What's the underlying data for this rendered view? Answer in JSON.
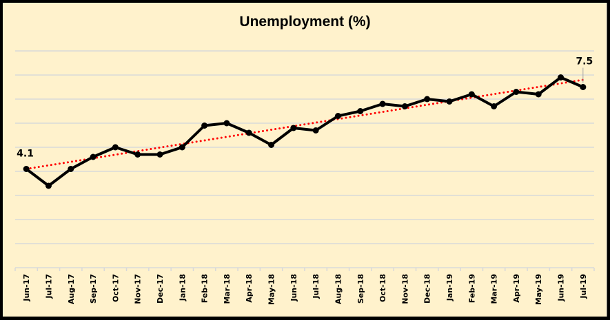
{
  "chart_data": {
    "type": "line",
    "title": "Unemployment (%)",
    "xlabel": "",
    "ylabel": "",
    "ylim": [
      0,
      9
    ],
    "y_gridlines": [
      1,
      2,
      3,
      4,
      5,
      6,
      7,
      8,
      9
    ],
    "y_tick_labels_visible": false,
    "grid": true,
    "legend": null,
    "categories": [
      "Jun-17",
      "Jul-17",
      "Aug-17",
      "Sep-17",
      "Oct-17",
      "Nov-17",
      "Dec-17",
      "Jan-18",
      "Feb-18",
      "Mar-18",
      "Apr-18",
      "May-18",
      "Jun-18",
      "Jul-18",
      "Aug-18",
      "Sep-18",
      "Oct-18",
      "Nov-18",
      "Dec-18",
      "Jan-19",
      "Feb-19",
      "Mar-19",
      "Apr-19",
      "May-19",
      "Jun-19",
      "Jul-19"
    ],
    "series": [
      {
        "name": "Unemployment",
        "color": "#000000",
        "marker": "circle",
        "values": [
          4.1,
          3.4,
          4.1,
          4.6,
          5.0,
          4.7,
          4.7,
          5.0,
          5.9,
          6.0,
          5.6,
          5.1,
          5.8,
          5.7,
          6.3,
          6.5,
          6.8,
          6.7,
          7.0,
          6.9,
          7.2,
          6.7,
          7.3,
          7.2,
          7.9,
          7.5
        ]
      }
    ],
    "trendline": {
      "type": "linear",
      "style": "dotted",
      "color": "#FF0000",
      "start": 4.1,
      "end": 7.8
    },
    "annotations": [
      {
        "category": "Jun-17",
        "text": "4.1"
      },
      {
        "category": "Jul-19",
        "text": "7.5"
      }
    ]
  },
  "colors": {
    "background": "#FFF2CC",
    "gridline": "#D9D9D9",
    "line": "#000000",
    "trend": "#FF0000",
    "frame": "#000000"
  }
}
